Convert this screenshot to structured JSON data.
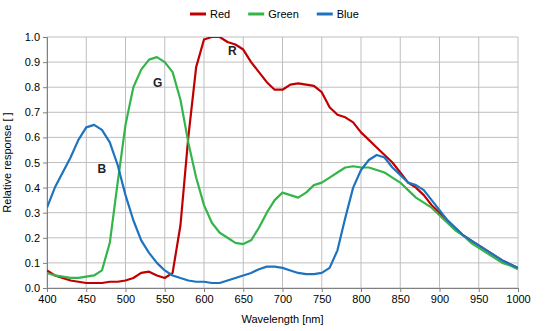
{
  "chart_data": {
    "type": "line",
    "x_label": "Wavelength [nm]",
    "y_label": "Relative response [ ]",
    "x": [
      400,
      410,
      420,
      430,
      440,
      450,
      460,
      470,
      480,
      490,
      500,
      510,
      520,
      530,
      540,
      550,
      560,
      570,
      580,
      590,
      600,
      610,
      620,
      630,
      640,
      650,
      660,
      670,
      680,
      690,
      700,
      710,
      720,
      730,
      740,
      750,
      760,
      770,
      780,
      790,
      800,
      810,
      820,
      830,
      840,
      850,
      860,
      870,
      880,
      890,
      900,
      910,
      920,
      930,
      940,
      950,
      960,
      970,
      980,
      990,
      1000
    ],
    "series": [
      {
        "name": "Red",
        "color": "#c00000",
        "values": [
          0.07,
          0.05,
          0.04,
          0.03,
          0.025,
          0.02,
          0.02,
          0.02,
          0.025,
          0.025,
          0.03,
          0.04,
          0.06,
          0.065,
          0.05,
          0.04,
          0.06,
          0.25,
          0.6,
          0.88,
          0.99,
          1.0,
          1.0,
          0.98,
          0.97,
          0.95,
          0.9,
          0.86,
          0.82,
          0.79,
          0.79,
          0.81,
          0.815,
          0.81,
          0.805,
          0.78,
          0.72,
          0.69,
          0.68,
          0.66,
          0.62,
          0.59,
          0.56,
          0.53,
          0.5,
          0.46,
          0.42,
          0.4,
          0.37,
          0.33,
          0.3,
          0.27,
          0.24,
          0.21,
          0.19,
          0.17,
          0.15,
          0.13,
          0.11,
          0.095,
          0.08
        ]
      },
      {
        "name": "Green",
        "color": "#33b54a",
        "values": [
          0.06,
          0.05,
          0.045,
          0.04,
          0.04,
          0.045,
          0.05,
          0.07,
          0.18,
          0.42,
          0.65,
          0.8,
          0.87,
          0.91,
          0.92,
          0.9,
          0.86,
          0.75,
          0.58,
          0.44,
          0.33,
          0.26,
          0.22,
          0.2,
          0.18,
          0.175,
          0.19,
          0.24,
          0.3,
          0.35,
          0.38,
          0.37,
          0.36,
          0.38,
          0.41,
          0.42,
          0.44,
          0.46,
          0.48,
          0.485,
          0.48,
          0.48,
          0.47,
          0.46,
          0.44,
          0.42,
          0.39,
          0.36,
          0.34,
          0.32,
          0.29,
          0.26,
          0.23,
          0.21,
          0.18,
          0.16,
          0.14,
          0.12,
          0.1,
          0.09,
          0.075
        ]
      },
      {
        "name": "Blue",
        "color": "#1e73be",
        "values": [
          0.32,
          0.4,
          0.46,
          0.52,
          0.59,
          0.64,
          0.65,
          0.63,
          0.58,
          0.49,
          0.37,
          0.27,
          0.19,
          0.14,
          0.1,
          0.07,
          0.05,
          0.04,
          0.03,
          0.025,
          0.025,
          0.02,
          0.02,
          0.03,
          0.04,
          0.05,
          0.06,
          0.075,
          0.085,
          0.085,
          0.08,
          0.07,
          0.06,
          0.055,
          0.055,
          0.06,
          0.08,
          0.15,
          0.28,
          0.4,
          0.47,
          0.51,
          0.53,
          0.52,
          0.48,
          0.45,
          0.42,
          0.41,
          0.39,
          0.35,
          0.31,
          0.27,
          0.24,
          0.21,
          0.19,
          0.17,
          0.15,
          0.13,
          0.11,
          0.095,
          0.08
        ]
      }
    ],
    "annotations": [
      {
        "text": "R",
        "x": 636,
        "y": 0.93
      },
      {
        "text": "G",
        "x": 541,
        "y": 0.8
      },
      {
        "text": "B",
        "x": 470,
        "y": 0.46
      }
    ],
    "xlim": [
      400,
      1000
    ],
    "xticks": [
      400,
      450,
      500,
      550,
      600,
      650,
      700,
      750,
      800,
      850,
      900,
      950,
      1000
    ],
    "ylim": [
      0,
      1
    ],
    "yticks": [
      {
        "value": 0,
        "label": "0.0"
      },
      0.1,
      0.2,
      0.3,
      0.4,
      0.5,
      0.6,
      0.7,
      0.8,
      0.9,
      {
        "value": 1,
        "label": "1.0"
      }
    ],
    "grid": true,
    "legend": "top"
  }
}
